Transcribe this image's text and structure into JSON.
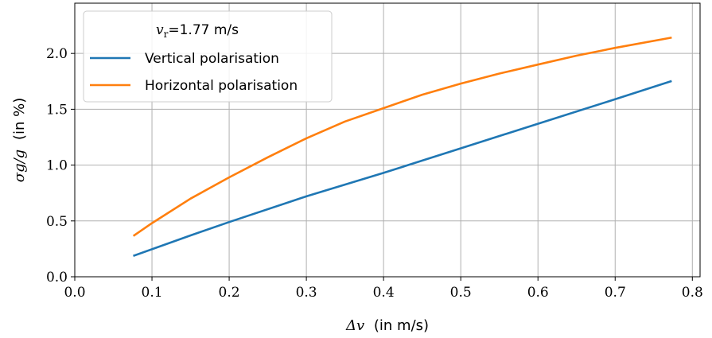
{
  "chart_data": {
    "type": "line",
    "xlabel_math": "Δv",
    "xlabel_units": "(in m/s)",
    "ylabel_math": "σg/g",
    "ylabel_units": "(in %)",
    "xlim": [
      0.0,
      0.81
    ],
    "ylim": [
      0.0,
      2.45
    ],
    "xticks": [
      0.0,
      0.1,
      0.2,
      0.3,
      0.4,
      0.5,
      0.6,
      0.7,
      0.8
    ],
    "xtick_labels": [
      "0.0",
      "0.1",
      "0.2",
      "0.3",
      "0.4",
      "0.5",
      "0.6",
      "0.7",
      "0.8"
    ],
    "yticks": [
      0.0,
      0.5,
      1.0,
      1.5,
      2.0
    ],
    "ytick_labels": [
      "0.0",
      "0.5",
      "1.0",
      "1.5",
      "2.0"
    ],
    "grid": true,
    "legend": {
      "placement": "upper-left",
      "title": "vr=1.77 m/s",
      "title_math": "v",
      "title_sub": "r",
      "title_rest": "=1.77 m/s"
    },
    "series": [
      {
        "name": "Vertical polarisation",
        "color": "#1f77b4",
        "x": [
          0.077,
          0.15,
          0.2,
          0.3,
          0.4,
          0.5,
          0.6,
          0.7,
          0.772
        ],
        "y": [
          0.19,
          0.37,
          0.49,
          0.72,
          0.93,
          1.15,
          1.37,
          1.59,
          1.75
        ]
      },
      {
        "name": "Horizontal polarisation",
        "color": "#ff7f0e",
        "x": [
          0.077,
          0.1,
          0.15,
          0.2,
          0.25,
          0.3,
          0.35,
          0.4,
          0.45,
          0.5,
          0.55,
          0.6,
          0.65,
          0.7,
          0.772
        ],
        "y": [
          0.37,
          0.48,
          0.7,
          0.89,
          1.07,
          1.24,
          1.39,
          1.51,
          1.63,
          1.73,
          1.82,
          1.9,
          1.98,
          2.05,
          2.14
        ]
      }
    ]
  }
}
